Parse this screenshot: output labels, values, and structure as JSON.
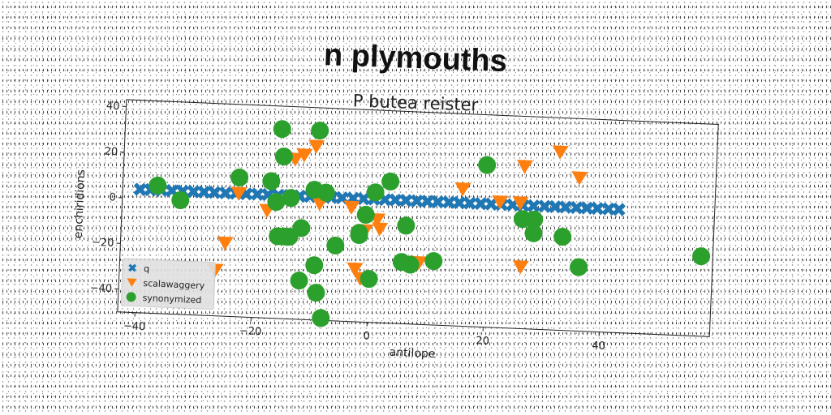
{
  "chart_data": {
    "type": "scatter",
    "title": "n plymouths",
    "subtitle": "P butea reister",
    "xlabel": "antilope",
    "ylabel": "enchiridions",
    "xlim": [
      -43,
      59
    ],
    "ylim": [
      -50,
      43
    ],
    "xticks": [
      -40,
      -20,
      0,
      20,
      40
    ],
    "yticks": [
      -40,
      -20,
      0,
      20,
      40
    ],
    "xtick_labels": [
      "−40",
      "−20",
      "0",
      "20",
      "40"
    ],
    "ytick_labels": [
      "−40",
      "−20",
      "0",
      "20",
      "40"
    ],
    "grid": false,
    "legend_position": "lower-left",
    "colors": {
      "q": "#1f77b4",
      "scalawaggery": "#ff7f0e",
      "synonymized": "#2ca02c"
    },
    "series": [
      {
        "name": "q",
        "marker": "x",
        "x": [
          -40,
          -38.2,
          -36.3,
          -34.5,
          -32.7,
          -30.8,
          -29,
          -27.2,
          -25.3,
          -23.5,
          -21.7,
          -19.8,
          -18,
          -16.2,
          -14.3,
          -12.5,
          -10.7,
          -8.8,
          -7,
          -5.2,
          -3.3,
          -1.5,
          0.3,
          2.2,
          4,
          5.8,
          7.7,
          9.5,
          11.3,
          13.2,
          15,
          16.8,
          18.7,
          20.5,
          22.3,
          24.2,
          26,
          27.8,
          29.7,
          31.5,
          33.3,
          35.2,
          37,
          38.8,
          40.7,
          42.5
        ],
        "y": [
          4,
          4,
          4,
          4,
          4,
          4,
          4,
          4,
          4,
          4,
          4,
          4,
          4,
          4,
          4,
          4,
          4,
          4,
          4,
          4,
          4,
          4,
          4,
          4,
          4,
          4,
          4,
          4,
          4,
          4,
          4,
          4,
          4,
          4,
          4,
          4,
          4,
          4,
          4,
          4,
          4,
          4,
          4,
          4,
          4,
          4
        ]
      },
      {
        "name": "scalawaggery",
        "marker": "v",
        "x": [
          -13.5,
          -12,
          -10,
          -9,
          -23,
          -25,
          -26.5,
          -18,
          -3.5,
          -1,
          1,
          1.5,
          -2.5,
          -1.5,
          6.5,
          8.5,
          15.5,
          22,
          25.5,
          26,
          26,
          32,
          35.5
        ],
        "y": [
          20,
          22,
          26,
          1,
          4,
          -18,
          -30,
          -3,
          0,
          -10,
          -5,
          -9,
          -27,
          -31,
          -23,
          -23,
          10,
          5,
          5,
          21,
          -23,
          28,
          17
        ]
      },
      {
        "name": "synonymized",
        "marker": "o",
        "x": [
          -16,
          -9.5,
          -15.5,
          -14,
          -23,
          -17.5,
          -16.5,
          -12,
          -14,
          -37,
          -33,
          -8,
          -10,
          -9.5,
          -12,
          -15,
          -16,
          -6,
          -1,
          -2,
          0,
          -2,
          3,
          5.5,
          6,
          7,
          11,
          19.5,
          26,
          28,
          28,
          33,
          36,
          -9,
          -8,
          0.5,
          57,
          -14.5
        ],
        "y": [
          33,
          33,
          21,
          3,
          11,
          10,
          1,
          -10,
          -14,
          6,
          0,
          6,
          7,
          -26,
          -33,
          -14,
          -14,
          -17,
          -3,
          -11,
          -31,
          -12,
          12,
          -23,
          -7,
          -24,
          -22,
          21,
          -2,
          -2,
          -8,
          -9,
          -22,
          -38,
          -49,
          7,
          -15,
          -14
        ]
      }
    ]
  }
}
